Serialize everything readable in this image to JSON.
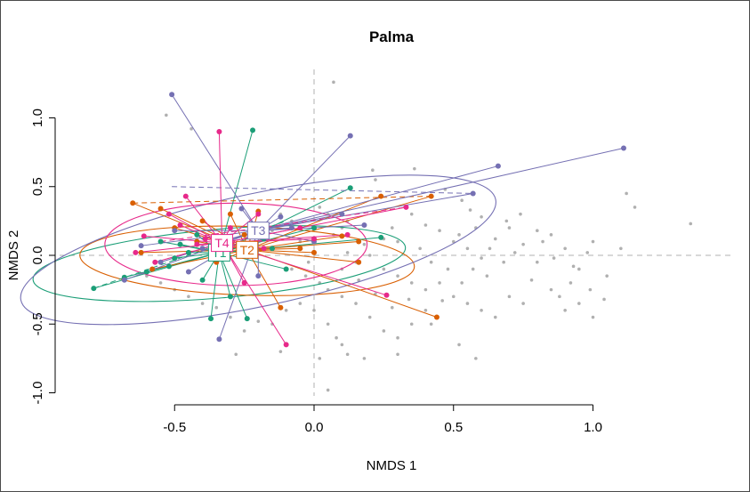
{
  "chart_data": {
    "type": "scatter",
    "title": "Palma",
    "xlabel": "NMDS 1",
    "ylabel": "NMDS 2",
    "xlim": [
      -1.1,
      1.5
    ],
    "ylim": [
      -1.05,
      1.35
    ],
    "x_ticks": [
      -0.5,
      0.0,
      0.5,
      1.0
    ],
    "x_tick_labels": [
      "-0.5",
      "0.0",
      "0.5",
      "1.0"
    ],
    "y_ticks": [
      -1.0,
      -0.5,
      0.0,
      0.5,
      1.0
    ],
    "y_tick_labels": [
      "-1.0",
      "-0.5",
      "0.0",
      "0.5",
      "1.0"
    ],
    "grid": false,
    "reference_lines": "dashed lines at x=0 and y=0",
    "background_points": [
      [
        0.07,
        1.26
      ],
      [
        -0.53,
        1.02
      ],
      [
        -0.44,
        0.92
      ],
      [
        0.21,
        0.62
      ],
      [
        0.36,
        0.63
      ],
      [
        0.22,
        0.55
      ],
      [
        0.47,
        0.48
      ],
      [
        0.53,
        0.4
      ],
      [
        0.56,
        0.33
      ],
      [
        0.6,
        0.28
      ],
      [
        0.35,
        0.3
      ],
      [
        0.4,
        0.22
      ],
      [
        0.45,
        0.18
      ],
      [
        0.5,
        0.1
      ],
      [
        0.55,
        0.05
      ],
      [
        0.6,
        -0.02
      ],
      [
        0.65,
        0.12
      ],
      [
        0.7,
        0.2
      ],
      [
        0.75,
        0.08
      ],
      [
        0.8,
        -0.05
      ],
      [
        0.85,
        0.15
      ],
      [
        0.9,
        0.05
      ],
      [
        0.95,
        -0.1
      ],
      [
        1.0,
        0.1
      ],
      [
        1.05,
        -0.15
      ],
      [
        1.1,
        0.05
      ],
      [
        1.12,
        0.45
      ],
      [
        1.15,
        0.35
      ],
      [
        1.35,
        0.23
      ],
      [
        0.1,
        -0.1
      ],
      [
        0.15,
        -0.05
      ],
      [
        0.2,
        0.0
      ],
      [
        0.25,
        -0.1
      ],
      [
        0.3,
        -0.15
      ],
      [
        0.35,
        -0.2
      ],
      [
        0.4,
        -0.25
      ],
      [
        0.45,
        -0.2
      ],
      [
        0.5,
        -0.3
      ],
      [
        0.55,
        -0.35
      ],
      [
        0.6,
        -0.4
      ],
      [
        0.65,
        -0.45
      ],
      [
        0.7,
        -0.3
      ],
      [
        0.75,
        -0.35
      ],
      [
        0.85,
        -0.25
      ],
      [
        0.9,
        -0.4
      ],
      [
        0.95,
        -0.35
      ],
      [
        1.0,
        -0.45
      ],
      [
        0.1,
        -0.3
      ],
      [
        0.15,
        -0.35
      ],
      [
        0.2,
        -0.45
      ],
      [
        0.25,
        -0.55
      ],
      [
        0.3,
        -0.6
      ],
      [
        0.35,
        -0.5
      ],
      [
        0.42,
        -0.5
      ],
      [
        0.0,
        -0.4
      ],
      [
        0.05,
        -0.5
      ],
      [
        0.08,
        -0.6
      ],
      [
        0.1,
        -0.65
      ],
      [
        0.12,
        -0.72
      ],
      [
        0.18,
        -0.75
      ],
      [
        0.3,
        -0.72
      ],
      [
        0.52,
        -0.65
      ],
      [
        0.58,
        -0.75
      ],
      [
        0.02,
        -0.2
      ],
      [
        0.05,
        -0.25
      ],
      [
        -0.05,
        -0.35
      ],
      [
        -0.1,
        -0.4
      ],
      [
        -0.15,
        -0.5
      ],
      [
        -0.2,
        -0.48
      ],
      [
        -0.25,
        -0.55
      ],
      [
        -0.3,
        -0.45
      ],
      [
        -0.35,
        -0.38
      ],
      [
        -0.4,
        -0.35
      ],
      [
        -0.45,
        -0.3
      ],
      [
        -0.5,
        -0.25
      ],
      [
        -0.55,
        -0.2
      ],
      [
        -0.6,
        -0.15
      ],
      [
        -0.28,
        -0.72
      ],
      [
        -0.12,
        -0.7
      ],
      [
        0.05,
        -0.98
      ],
      [
        0.02,
        -0.75
      ],
      [
        0.3,
        0.1
      ],
      [
        0.38,
        0.05
      ],
      [
        0.42,
        -0.05
      ],
      [
        0.48,
        -0.1
      ],
      [
        0.52,
        0.15
      ],
      [
        0.58,
        0.2
      ],
      [
        0.62,
        -0.15
      ],
      [
        0.68,
        -0.05
      ],
      [
        0.72,
        0.02
      ],
      [
        0.78,
        -0.18
      ],
      [
        0.82,
        0.1
      ],
      [
        0.88,
        -0.3
      ],
      [
        0.92,
        -0.2
      ],
      [
        0.98,
        0.02
      ],
      [
        0.28,
        0.2
      ],
      [
        0.25,
        0.12
      ],
      [
        0.18,
        0.08
      ],
      [
        0.12,
        0.02
      ],
      [
        0.16,
        -0.18
      ],
      [
        0.22,
        -0.28
      ],
      [
        0.28,
        -0.38
      ],
      [
        0.34,
        -0.32
      ],
      [
        0.4,
        -0.4
      ],
      [
        0.46,
        -0.33
      ],
      [
        0.53,
        -0.2
      ],
      [
        0.57,
        -0.1
      ],
      [
        0.63,
        0.05
      ],
      [
        0.69,
        0.25
      ],
      [
        0.74,
        0.3
      ],
      [
        0.8,
        0.18
      ],
      [
        0.86,
        -0.02
      ],
      [
        0.93,
        -0.08
      ],
      [
        0.99,
        -0.25
      ],
      [
        1.04,
        -0.32
      ],
      [
        -0.05,
        0.1
      ],
      [
        -0.02,
        -0.05
      ],
      [
        0.07,
        0.15
      ],
      [
        0.1,
        0.2
      ],
      [
        0.12,
        0.25
      ],
      [
        0.05,
        0.3
      ],
      [
        0.02,
        0.35
      ],
      [
        -0.08,
        0.25
      ],
      [
        -0.12,
        0.3
      ],
      [
        -0.15,
        0.18
      ],
      [
        -0.2,
        0.22
      ],
      [
        -0.18,
        0.05
      ],
      [
        -0.08,
        -0.1
      ],
      [
        -0.03,
        -0.15
      ]
    ],
    "groups": [
      {
        "name": "T1",
        "color": "#1b9e77",
        "centroid": [
          -0.34,
          0.02
        ],
        "ellipse": {
          "cx": -0.34,
          "cy": -0.06,
          "rx": 0.67,
          "ry": 0.25,
          "angle_deg": 5
        },
        "points": [
          [
            -0.79,
            -0.24
          ],
          [
            -0.68,
            -0.16
          ],
          [
            -0.6,
            -0.12
          ],
          [
            -0.52,
            -0.08
          ],
          [
            -0.45,
            0.02
          ],
          [
            -0.42,
            0.15
          ],
          [
            -0.37,
            -0.46
          ],
          [
            -0.3,
            -0.3
          ],
          [
            -0.24,
            -0.46
          ],
          [
            -0.22,
            0.91
          ],
          [
            -0.18,
            0.12
          ],
          [
            -0.15,
            0.05
          ],
          [
            -0.1,
            -0.1
          ],
          [
            0.0,
            0.2
          ],
          [
            0.13,
            0.49
          ],
          [
            0.24,
            0.13
          ],
          [
            -0.55,
            0.1
          ],
          [
            -0.5,
            -0.02
          ],
          [
            -0.48,
            0.08
          ],
          [
            -0.4,
            -0.18
          ]
        ],
        "dashed_lines": [
          [
            -0.79,
            -0.24
          ],
          [
            -0.1,
            0.25
          ]
        ]
      },
      {
        "name": "T2",
        "color": "#d95f02",
        "centroid": [
          -0.24,
          0.04
        ],
        "ellipse": {
          "cx": -0.24,
          "cy": -0.04,
          "rx": 0.6,
          "ry": 0.25,
          "angle_deg": -2
        },
        "points": [
          [
            -0.65,
            0.38
          ],
          [
            -0.55,
            0.34
          ],
          [
            -0.5,
            0.2
          ],
          [
            -0.42,
            0.1
          ],
          [
            -0.35,
            -0.05
          ],
          [
            -0.3,
            0.3
          ],
          [
            -0.2,
            0.32
          ],
          [
            -0.12,
            -0.38
          ],
          [
            0.0,
            0.02
          ],
          [
            0.1,
            0.14
          ],
          [
            0.16,
            0.1
          ],
          [
            0.24,
            0.43
          ],
          [
            0.42,
            0.43
          ],
          [
            0.44,
            -0.45
          ],
          [
            0.16,
            -0.05
          ],
          [
            -0.62,
            0.02
          ],
          [
            -0.58,
            -0.1
          ],
          [
            -0.4,
            0.25
          ],
          [
            -0.25,
            0.15
          ],
          [
            -0.05,
            0.05
          ]
        ],
        "dashed_lines": [
          [
            -0.65,
            0.38
          ],
          [
            0.42,
            0.43
          ]
        ]
      },
      {
        "name": "T3",
        "color": "#7570b3",
        "centroid": [
          -0.2,
          0.18
        ],
        "ellipse": {
          "cx": -0.2,
          "cy": 0.04,
          "rx": 0.87,
          "ry": 0.41,
          "angle_deg": 12
        },
        "points": [
          [
            -0.51,
            1.17
          ],
          [
            -0.62,
            0.07
          ],
          [
            -0.68,
            -0.18
          ],
          [
            -0.55,
            -0.05
          ],
          [
            -0.45,
            -0.12
          ],
          [
            -0.34,
            -0.61
          ],
          [
            -0.26,
            0.34
          ],
          [
            -0.12,
            0.28
          ],
          [
            0.13,
            0.87
          ],
          [
            0.18,
            0.22
          ],
          [
            0.57,
            0.45
          ],
          [
            0.66,
            0.65
          ],
          [
            1.11,
            0.78
          ],
          [
            0.0,
            0.1
          ],
          [
            -0.3,
            0.12
          ],
          [
            -0.4,
            0.05
          ],
          [
            -0.5,
            0.18
          ],
          [
            -0.2,
            -0.15
          ],
          [
            0.1,
            0.3
          ],
          [
            -0.08,
            0.2
          ]
        ],
        "dashed_lines": [
          [
            -0.51,
            0.5
          ],
          [
            0.57,
            0.45
          ]
        ]
      },
      {
        "name": "T4",
        "color": "#e7298a",
        "centroid": [
          -0.33,
          0.09
        ],
        "ellipse": {
          "cx": -0.28,
          "cy": 0.08,
          "rx": 0.47,
          "ry": 0.3,
          "angle_deg": 0
        },
        "points": [
          [
            -0.61,
            0.14
          ],
          [
            -0.57,
            -0.05
          ],
          [
            -0.52,
            0.3
          ],
          [
            -0.46,
            0.43
          ],
          [
            -0.39,
            0.12
          ],
          [
            -0.35,
            0.05
          ],
          [
            -0.34,
            0.9
          ],
          [
            -0.3,
            0.2
          ],
          [
            -0.25,
            -0.2
          ],
          [
            -0.18,
            0.05
          ],
          [
            -0.1,
            -0.65
          ],
          [
            0.0,
            0.12
          ],
          [
            0.26,
            -0.29
          ],
          [
            0.33,
            0.35
          ],
          [
            0.12,
            0.15
          ],
          [
            -0.64,
            0.02
          ],
          [
            -0.48,
            0.22
          ],
          [
            -0.42,
            0.08
          ],
          [
            -0.2,
            0.3
          ],
          [
            -0.05,
            0.2
          ]
        ],
        "dashed_lines": [
          [
            -0.55,
            0.1
          ],
          [
            0.33,
            0.35
          ]
        ]
      }
    ]
  }
}
